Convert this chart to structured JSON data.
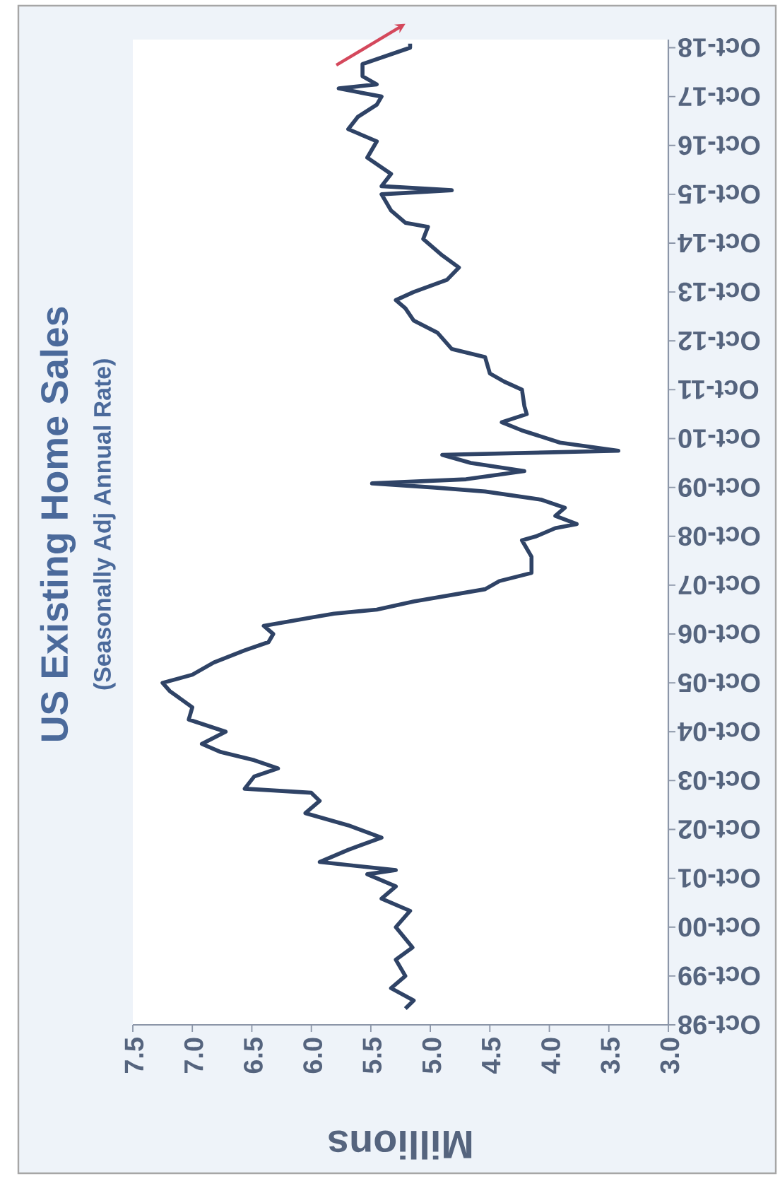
{
  "chart_data": {
    "type": "line",
    "orientation": "horizontal",
    "title": "US Existing Home Sales",
    "subtitle": "(Seasonally Adj Annual Rate)",
    "xlabel": "Millions",
    "x": [
      "1999-02",
      "1999-04",
      "1999-07",
      "1999-10",
      "2000-02",
      "2000-05",
      "2000-10",
      "2001-02",
      "2001-05",
      "2001-08",
      "2001-11",
      "2001-12",
      "2002-02",
      "2002-05",
      "2002-08",
      "2002-11",
      "2003-02",
      "2003-05",
      "2003-07",
      "2003-08",
      "2003-11",
      "2004-01",
      "2004-03",
      "2004-05",
      "2004-07",
      "2004-10",
      "2005-01",
      "2005-04",
      "2005-08",
      "2005-10",
      "2005-12",
      "2006-03",
      "2006-06",
      "2006-08",
      "2006-10",
      "2006-12",
      "2007-02",
      "2007-03",
      "2007-04",
      "2007-06",
      "2007-09",
      "2007-11",
      "2008-01",
      "2008-05",
      "2008-09",
      "2008-10",
      "2008-12",
      "2009-01",
      "2009-03",
      "2009-05",
      "2009-07",
      "2009-09",
      "2009-10",
      "2009-11",
      "2009-12",
      "2010-02",
      "2010-04",
      "2010-06",
      "2010-07",
      "2010-09",
      "2010-12",
      "2011-02",
      "2011-04",
      "2011-06",
      "2011-10",
      "2011-12",
      "2012-02",
      "2012-06",
      "2012-08",
      "2012-12",
      "2013-03",
      "2013-06",
      "2013-08",
      "2013-10",
      "2014-01",
      "2014-04",
      "2014-07",
      "2014-11",
      "2015-02",
      "2015-03",
      "2015-06",
      "2015-10",
      "2015-11",
      "2015-12",
      "2016-03",
      "2016-07",
      "2016-11",
      "2017-02",
      "2017-05",
      "2017-08",
      "2017-10",
      "2017-12",
      "2018-01",
      "2018-03",
      "2018-06",
      "2018-08",
      "2018-10",
      "2018-11"
    ],
    "series": [
      {
        "color": "#2f4366",
        "values": [
          5.21,
          5.14,
          5.33,
          5.21,
          5.29,
          5.15,
          5.29,
          5.17,
          5.41,
          5.29,
          5.53,
          5.29,
          5.93,
          5.69,
          5.41,
          5.69,
          6.05,
          5.93,
          6.0,
          6.56,
          6.48,
          6.28,
          6.48,
          6.76,
          6.92,
          6.72,
          7.03,
          7.0,
          7.19,
          7.25,
          7.0,
          6.82,
          6.56,
          6.36,
          6.32,
          6.4,
          6.01,
          5.81,
          5.45,
          5.14,
          4.54,
          4.42,
          4.15,
          4.15,
          4.23,
          4.11,
          3.95,
          3.77,
          3.95,
          3.87,
          4.07,
          4.54,
          4.98,
          5.49,
          4.7,
          4.21,
          4.66,
          4.9,
          3.42,
          3.91,
          4.23,
          4.4,
          4.19,
          4.21,
          4.23,
          4.38,
          4.5,
          4.54,
          4.82,
          4.94,
          5.14,
          5.21,
          5.29,
          5.14,
          4.86,
          4.76,
          4.9,
          5.06,
          5.02,
          5.21,
          5.33,
          5.41,
          4.82,
          5.41,
          5.33,
          5.53,
          5.45,
          5.69,
          5.61,
          5.45,
          5.41,
          5.77,
          5.45,
          5.57,
          5.57,
          5.37,
          5.17,
          5.17
        ]
      }
    ],
    "xlim": [
      7.5,
      3.0
    ],
    "xticks": [
      {
        "value": 7.5,
        "label": "7.5"
      },
      {
        "value": 7.0,
        "label": "7.0"
      },
      {
        "value": 6.5,
        "label": "6.5"
      },
      {
        "value": 6.0,
        "label": "6.0"
      },
      {
        "value": 5.5,
        "label": "5.5"
      },
      {
        "value": 5.0,
        "label": "5.0"
      },
      {
        "value": 4.5,
        "label": "4.5"
      },
      {
        "value": 4.0,
        "label": "4.0"
      },
      {
        "value": 3.5,
        "label": "3.5"
      },
      {
        "value": 3.0,
        "label": "3.0"
      }
    ],
    "ylim": [
      "1998-10",
      "2018-12"
    ],
    "yticks": [
      {
        "value": "1998-10",
        "label": "Oct-98"
      },
      {
        "value": "1999-10",
        "label": "Oct-99"
      },
      {
        "value": "2000-10",
        "label": "Oct-00"
      },
      {
        "value": "2001-10",
        "label": "Oct-01"
      },
      {
        "value": "2002-10",
        "label": "Oct-02"
      },
      {
        "value": "2003-10",
        "label": "Oct-03"
      },
      {
        "value": "2004-10",
        "label": "Oct-04"
      },
      {
        "value": "2005-10",
        "label": "Oct-05"
      },
      {
        "value": "2006-10",
        "label": "Oct-06"
      },
      {
        "value": "2007-10",
        "label": "Oct-07"
      },
      {
        "value": "2008-10",
        "label": "Oct-08"
      },
      {
        "value": "2009-10",
        "label": "Oct-09"
      },
      {
        "value": "2010-10",
        "label": "Oct-10"
      },
      {
        "value": "2011-10",
        "label": "Oct-11"
      },
      {
        "value": "2012-10",
        "label": "Oct-12"
      },
      {
        "value": "2013-10",
        "label": "Oct-13"
      },
      {
        "value": "2014-10",
        "label": "Oct-14"
      },
      {
        "value": "2015-10",
        "label": "Oct-15"
      },
      {
        "value": "2016-10",
        "label": "Oct-16"
      },
      {
        "value": "2017-10",
        "label": "Oct-17"
      },
      {
        "value": "2018-10",
        "label": "Oct-18"
      }
    ]
  }
}
